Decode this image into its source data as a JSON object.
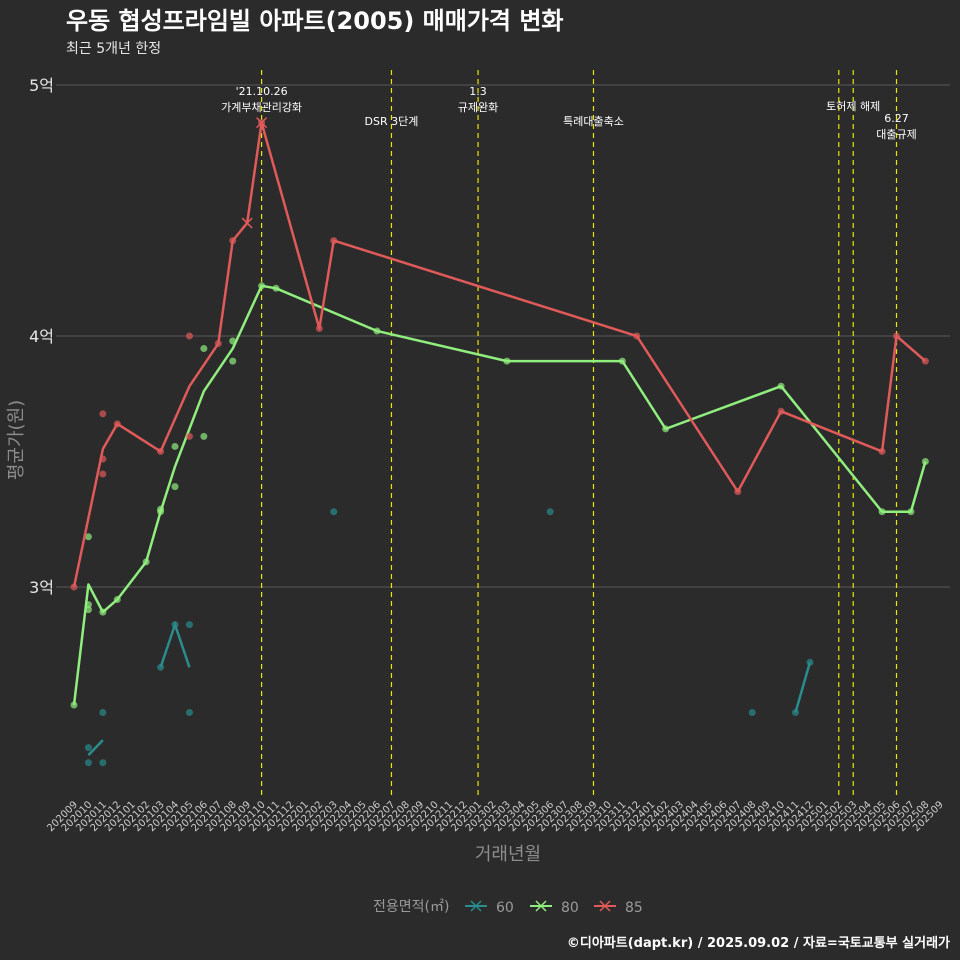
{
  "chart_data": {
    "type": "line",
    "title": "우동 협성프라임빌 아파트(2005) 매매가격 변화",
    "subtitle": "최근 5개년 한정",
    "xlabel": "거래년월",
    "ylabel": "평균가(원)",
    "ylim": [
      2.2,
      5.1
    ],
    "y_ticks": [
      {
        "value": 3,
        "label": "3억"
      },
      {
        "value": 4,
        "label": "4억"
      },
      {
        "value": 5,
        "label": "5억"
      }
    ],
    "categories": [
      "202009",
      "202010",
      "202011",
      "202012",
      "202101",
      "202102",
      "202103",
      "202104",
      "202105",
      "202106",
      "202107",
      "202108",
      "202109",
      "202110",
      "202111",
      "202112",
      "202201",
      "202202",
      "202203",
      "202204",
      "202205",
      "202206",
      "202207",
      "202208",
      "202209",
      "202210",
      "202211",
      "202212",
      "202301",
      "202302",
      "202303",
      "202304",
      "202305",
      "202306",
      "202307",
      "202308",
      "202309",
      "202310",
      "202311",
      "202312",
      "202401",
      "202402",
      "202403",
      "202404",
      "202405",
      "202406",
      "202407",
      "202408",
      "202409",
      "202410",
      "202411",
      "202412",
      "202501",
      "202502",
      "202503",
      "202504",
      "202505",
      "202506",
      "202507",
      "202508",
      "202509"
    ],
    "series": [
      {
        "name": "60",
        "color": "#2a8c8c",
        "line_segments": [
          [
            [
              "202010",
              2.33
            ],
            [
              "202011",
              2.39
            ]
          ],
          [
            [
              "202103",
              2.68
            ],
            [
              "202104",
              2.85
            ],
            [
              "202105",
              2.68
            ]
          ],
          [
            [
              "202411",
              2.5
            ],
            [
              "202412",
              2.7
            ]
          ]
        ],
        "points": [
          [
            "202010",
            2.36
          ],
          [
            "202010",
            2.3
          ],
          [
            "202011",
            2.3
          ],
          [
            "202011",
            2.5
          ],
          [
            "202103",
            2.68
          ],
          [
            "202104",
            2.85
          ],
          [
            "202105",
            2.85
          ],
          [
            "202105",
            2.5
          ],
          [
            "202203",
            3.3
          ],
          [
            "202306",
            3.3
          ],
          [
            "202408",
            2.5
          ],
          [
            "202411",
            2.5
          ],
          [
            "202412",
            2.7
          ]
        ]
      },
      {
        "name": "80",
        "color": "#90ee7e",
        "line": [
          [
            "202009",
            2.53
          ],
          [
            "202010",
            3.01
          ],
          [
            "202011",
            2.9
          ],
          [
            "202012",
            2.95
          ],
          [
            "202102",
            3.1
          ],
          [
            "202103",
            3.3
          ],
          [
            "202104",
            3.48
          ],
          [
            "202106",
            3.78
          ],
          [
            "202108",
            3.95
          ],
          [
            "202110",
            4.2
          ],
          [
            "202111",
            4.19
          ],
          [
            "202206",
            4.02
          ],
          [
            "202303",
            3.9
          ],
          [
            "202311",
            3.9
          ],
          [
            "202402",
            3.63
          ],
          [
            "202410",
            3.8
          ],
          [
            "202505",
            3.3
          ],
          [
            "202507",
            3.3
          ],
          [
            "202508",
            3.5
          ]
        ],
        "points": [
          [
            "202009",
            2.53
          ],
          [
            "202010",
            3.2
          ],
          [
            "202010",
            2.93
          ],
          [
            "202010",
            2.91
          ],
          [
            "202011",
            2.9
          ],
          [
            "202012",
            2.95
          ],
          [
            "202102",
            3.1
          ],
          [
            "202103",
            3.3
          ],
          [
            "202103",
            3.31
          ],
          [
            "202104",
            3.56
          ],
          [
            "202104",
            3.4
          ],
          [
            "202106",
            3.95
          ],
          [
            "202106",
            3.6
          ],
          [
            "202108",
            3.98
          ],
          [
            "202108",
            3.9
          ],
          [
            "202110",
            4.2
          ],
          [
            "202111",
            4.19
          ],
          [
            "202206",
            4.02
          ],
          [
            "202303",
            3.9
          ],
          [
            "202311",
            3.9
          ],
          [
            "202402",
            3.63
          ],
          [
            "202410",
            3.8
          ],
          [
            "202505",
            3.3
          ],
          [
            "202507",
            3.3
          ],
          [
            "202508",
            3.5
          ]
        ]
      },
      {
        "name": "85",
        "color": "#e05a5a",
        "line": [
          [
            "202009",
            3.0
          ],
          [
            "202011",
            3.55
          ],
          [
            "202012",
            3.65
          ],
          [
            "202103",
            3.54
          ],
          [
            "202105",
            3.8
          ],
          [
            "202107",
            3.97
          ],
          [
            "202108",
            4.38
          ],
          [
            "202109",
            4.45
          ],
          [
            "202110",
            4.85
          ],
          [
            "202202",
            4.03
          ],
          [
            "202203",
            4.38
          ],
          [
            "202312",
            4.0
          ],
          [
            "202407",
            3.38
          ],
          [
            "202410",
            3.7
          ],
          [
            "202505",
            3.54
          ],
          [
            "202506",
            4.0
          ],
          [
            "202508",
            3.9
          ]
        ],
        "points": [
          [
            "202009",
            3.0
          ],
          [
            "202011",
            3.69
          ],
          [
            "202011",
            3.51
          ],
          [
            "202011",
            3.45
          ],
          [
            "202012",
            3.65
          ],
          [
            "202103",
            3.54
          ],
          [
            "202105",
            4.0
          ],
          [
            "202105",
            3.6
          ],
          [
            "202107",
            3.97
          ],
          [
            "202108",
            4.38
          ],
          [
            "202110",
            4.85
          ],
          [
            "202202",
            4.03
          ],
          [
            "202203",
            4.38
          ],
          [
            "202312",
            4.0
          ],
          [
            "202407",
            3.38
          ],
          [
            "202410",
            3.7
          ],
          [
            "202505",
            3.54
          ],
          [
            "202506",
            4.0
          ],
          [
            "202508",
            3.9
          ]
        ],
        "x_markers": [
          [
            "202109",
            4.45
          ],
          [
            "202110",
            4.85
          ]
        ]
      }
    ],
    "annotations": [
      {
        "x": "202110",
        "lines": [
          "'21.10.26",
          "가계부채관리강화"
        ],
        "row": 0
      },
      {
        "x": "202207",
        "lines": [
          "DSR 3단계"
        ],
        "row": 2
      },
      {
        "x": "202301",
        "lines": [
          "1.3",
          "규제완화"
        ],
        "row": 0
      },
      {
        "x": "202309",
        "lines": [
          "특례대출축소"
        ],
        "row": 2
      },
      {
        "x": "202502",
        "lines": [],
        "row": 0
      },
      {
        "x": "202503",
        "lines": [
          "토허제 해제"
        ],
        "row": 1
      },
      {
        "x": "202506",
        "lines": [
          "6.27",
          "대출규제"
        ],
        "row": 1.8
      }
    ],
    "legend": {
      "title": "전용면적(㎡)",
      "position": "bottom",
      "entries": [
        "60",
        "80",
        "85"
      ]
    },
    "caption": "©디아파트(dapt.kr) / 2025.09.02 / 자료=국토교통부 실거래가",
    "grid": true,
    "background": "#2b2b2b",
    "grid_color": "#5a5a5a",
    "vline_color": "#e6e600"
  }
}
